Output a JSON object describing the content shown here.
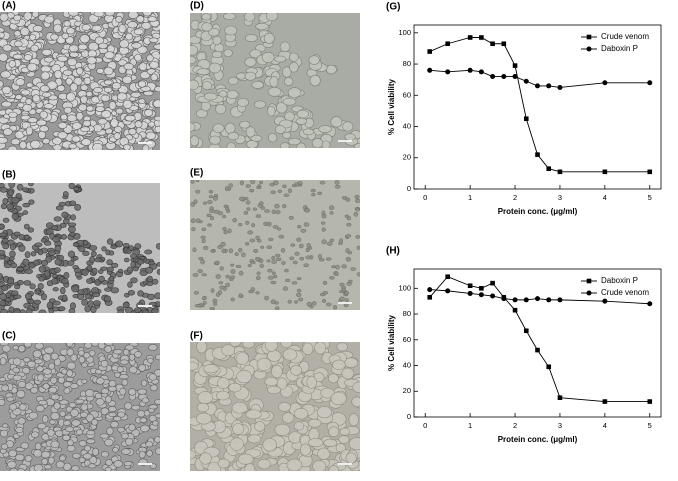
{
  "panels": [
    "(A)",
    "(B)",
    "(C)",
    "(D)",
    "(E)",
    "(F)"
  ],
  "chart_data": [
    {
      "type": "line",
      "title": "(G)",
      "xlabel": "Protein conc. (μg/ml)",
      "ylabel": "% Cell viability",
      "x": [
        0.1,
        0.5,
        1,
        1.25,
        1.5,
        1.75,
        2,
        2.25,
        2.5,
        2.75,
        3,
        4,
        5
      ],
      "xlim": [
        -0.25,
        5.25
      ],
      "xticks": [
        0,
        1,
        2,
        3,
        4,
        5
      ],
      "ylim": [
        0,
        105
      ],
      "yticks": [
        0,
        20,
        40,
        60,
        80,
        100
      ],
      "legend": "upper right",
      "series": [
        {
          "name": "Crude venom",
          "color": "#000000",
          "marker": "square",
          "values": [
            88,
            93,
            97,
            97,
            93,
            93,
            79,
            45,
            22,
            13,
            11,
            11,
            11
          ]
        },
        {
          "name": "Daboxin P",
          "color": "#000000",
          "marker": "circle",
          "values": [
            76,
            75,
            76,
            75,
            72,
            72,
            72,
            69,
            66,
            66,
            65,
            68,
            68
          ]
        }
      ]
    },
    {
      "type": "line",
      "title": "(H)",
      "xlabel": "Protein conc. (μg/ml)",
      "ylabel": "% Cell viability",
      "x": [
        0.1,
        0.5,
        1,
        1.25,
        1.5,
        1.75,
        2,
        2.25,
        2.5,
        2.75,
        3,
        4,
        5
      ],
      "xlim": [
        -0.25,
        5.25
      ],
      "xticks": [
        0,
        1,
        2,
        3,
        4,
        5
      ],
      "ylim": [
        0,
        115
      ],
      "yticks": [
        0,
        20,
        40,
        60,
        80,
        100
      ],
      "legend": "upper right",
      "series": [
        {
          "name": "Daboxin P",
          "color": "#000000",
          "marker": "square",
          "values": [
            93,
            109,
            102,
            100,
            104,
            93,
            83,
            67,
            52,
            39,
            15,
            12,
            12
          ]
        },
        {
          "name": "Crude venom",
          "color": "#000000",
          "marker": "circle",
          "values": [
            99,
            98,
            96,
            95,
            94,
            92,
            91,
            91,
            92,
            91,
            91,
            90,
            88
          ]
        }
      ]
    }
  ]
}
